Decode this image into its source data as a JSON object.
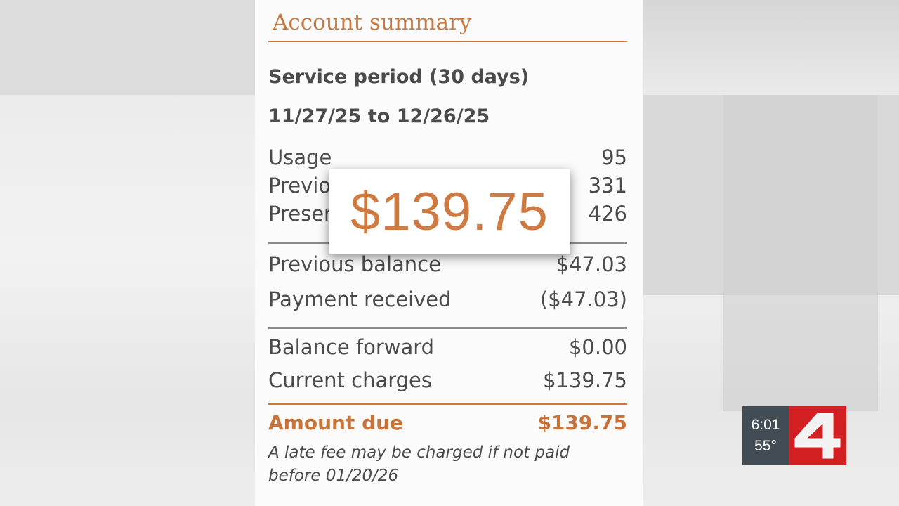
{
  "card": {
    "title": "Account summary",
    "service_period": "Service period (30 days)",
    "date_range": "11/27/25 to 12/26/25",
    "meter": [
      {
        "label": "Usage",
        "value": "95"
      },
      {
        "label": "Previous",
        "value": "331"
      },
      {
        "label": "Present",
        "value": "426"
      }
    ],
    "balance": [
      {
        "label": "Previous balance",
        "value": "$47.03"
      },
      {
        "label": "Payment received",
        "value": "($47.03)"
      }
    ],
    "charges": [
      {
        "label": "Balance forward",
        "value": "$0.00"
      },
      {
        "label": "Current charges",
        "value": "$139.75"
      }
    ],
    "amount_due": {
      "label": "Amount due",
      "value": "$139.75"
    },
    "note_line1": "A late fee may be charged if not paid",
    "note_line2": "before 01/20/26"
  },
  "popup": {
    "amount": "$139.75"
  },
  "station_bug": {
    "time": "6:01",
    "temperature": "55°",
    "logo": "4",
    "brand_color": "#d11f22"
  },
  "colors": {
    "accent": "#c8733a",
    "text": "#4b4b4b"
  }
}
